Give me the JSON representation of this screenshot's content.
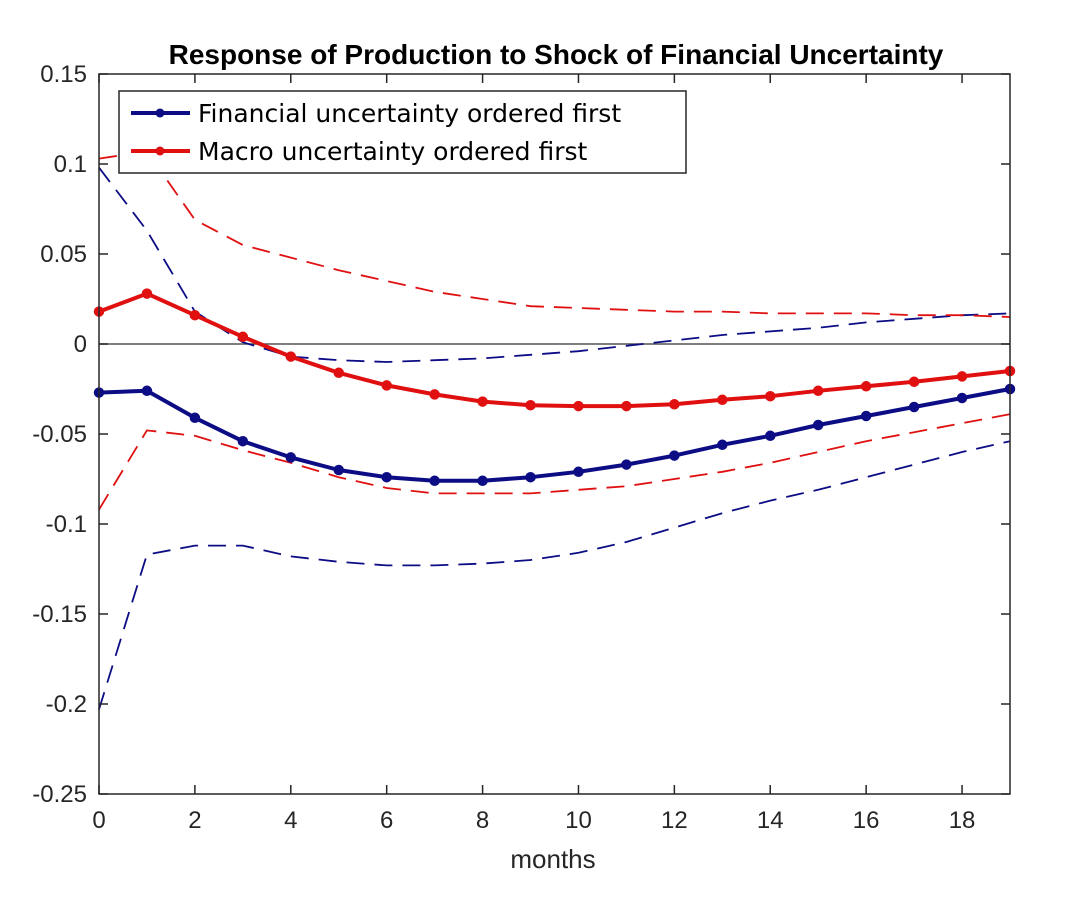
{
  "chart_data": {
    "type": "line",
    "title": "Response of Production to Shock of Financial Uncertainty",
    "xlabel": "months",
    "ylabel": "",
    "xlim": [
      0,
      19
    ],
    "ylim": [
      -0.25,
      0.15
    ],
    "xticks": [
      0,
      2,
      4,
      6,
      8,
      10,
      12,
      14,
      16,
      18
    ],
    "xtick_labels": [
      "0",
      "2",
      "4",
      "6",
      "8",
      "10",
      "12",
      "14",
      "16",
      "18"
    ],
    "yticks": [
      0.15,
      0.1,
      0.05,
      0,
      -0.05,
      -0.1,
      -0.15,
      -0.2,
      -0.25
    ],
    "ytick_labels": [
      "0.15",
      "0.1",
      "0.05",
      "0",
      "-0.05",
      "-0.1",
      "-0.15",
      "-0.2",
      "-0.25"
    ],
    "grid": false,
    "legend_position": "top-left",
    "x": [
      0,
      1,
      2,
      3,
      4,
      5,
      6,
      7,
      8,
      9,
      10,
      11,
      12,
      13,
      14,
      15,
      16,
      17,
      18,
      19
    ],
    "zero_line": {
      "y": 0,
      "color": "#555555"
    },
    "series": [
      {
        "name": "Financial uncertainty ordered first",
        "color": "#0c0c85",
        "style": "solid-markers",
        "values": [
          -0.027,
          -0.026,
          -0.041,
          -0.054,
          -0.063,
          -0.07,
          -0.074,
          -0.076,
          -0.076,
          -0.074,
          -0.071,
          -0.067,
          -0.062,
          -0.056,
          -0.051,
          -0.045,
          -0.04,
          -0.035,
          -0.03,
          -0.025
        ]
      },
      {
        "name": "Macro uncertainty ordered first",
        "color": "#e01010",
        "style": "solid-markers",
        "values": [
          0.018,
          0.028,
          0.016,
          0.004,
          -0.007,
          -0.016,
          -0.023,
          -0.028,
          -0.032,
          -0.034,
          -0.0345,
          -0.0345,
          -0.0335,
          -0.031,
          -0.029,
          -0.026,
          -0.0235,
          -0.021,
          -0.018,
          -0.015
        ]
      }
    ],
    "bands": [
      {
        "color": "#0c0c85",
        "upper": [
          0.098,
          0.063,
          0.018,
          0.001,
          -0.007,
          -0.009,
          -0.01,
          -0.009,
          -0.008,
          -0.006,
          -0.004,
          -0.001,
          0.002,
          0.005,
          0.007,
          0.009,
          0.012,
          0.014,
          0.016,
          0.017
        ],
        "lower": [
          -0.203,
          -0.117,
          -0.112,
          -0.112,
          -0.118,
          -0.121,
          -0.123,
          -0.123,
          -0.122,
          -0.12,
          -0.116,
          -0.11,
          -0.102,
          -0.094,
          -0.087,
          -0.081,
          -0.074,
          -0.067,
          -0.06,
          -0.054
        ]
      },
      {
        "color": "#e01010",
        "upper": [
          0.103,
          0.107,
          0.069,
          0.055,
          0.048,
          0.041,
          0.035,
          0.029,
          0.025,
          0.021,
          0.02,
          0.019,
          0.018,
          0.018,
          0.017,
          0.017,
          0.017,
          0.016,
          0.016,
          0.015
        ],
        "lower": [
          -0.092,
          -0.048,
          -0.051,
          -0.059,
          -0.066,
          -0.074,
          -0.08,
          -0.083,
          -0.083,
          -0.083,
          -0.081,
          -0.079,
          -0.075,
          -0.071,
          -0.066,
          -0.06,
          -0.054,
          -0.049,
          -0.044,
          -0.039
        ]
      }
    ]
  }
}
